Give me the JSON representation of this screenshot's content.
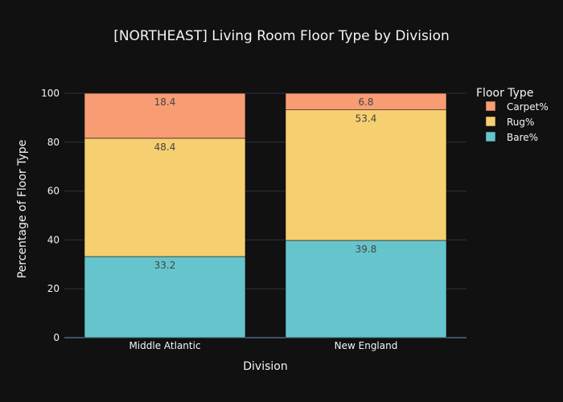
{
  "chart_data": {
    "type": "bar",
    "stacked": true,
    "title": "[NORTHEAST] Living Room Floor Type by Division",
    "xlabel": "Division",
    "ylabel": "Percentage of Floor Type",
    "ylim": [
      0,
      100
    ],
    "yticks": [
      "0",
      "20",
      "40",
      "60",
      "80",
      "100"
    ],
    "categories": [
      "Middle Atlantic",
      "New England"
    ],
    "legend_title": "Floor Type",
    "legend_position": "top-right",
    "grid": true,
    "series": [
      {
        "name": "Bare%",
        "color": "#66c5cc",
        "values": [
          33.2,
          39.8
        ]
      },
      {
        "name": "Rug%",
        "color": "#f6cf71",
        "values": [
          48.4,
          53.4
        ]
      },
      {
        "name": "Carpet%",
        "color": "#f89c74",
        "values": [
          18.4,
          6.8
        ]
      }
    ]
  }
}
